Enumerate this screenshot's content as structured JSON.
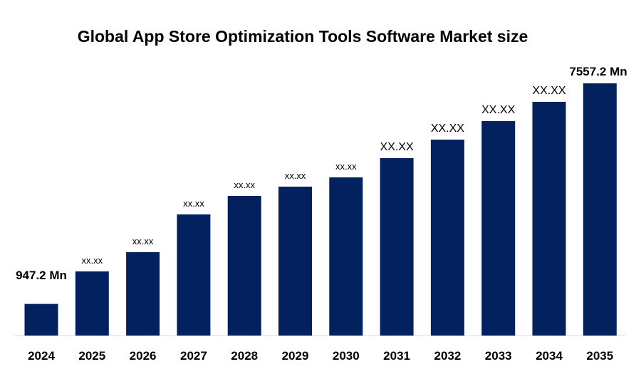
{
  "chart_data": {
    "type": "bar",
    "title": "Global App Store Optimization Tools Software Market size",
    "xlabel": "",
    "ylabel": "",
    "categories": [
      "2024",
      "2025",
      "2026",
      "2027",
      "2028",
      "2029",
      "2030",
      "2031",
      "2032",
      "2033",
      "2034",
      "2035"
    ],
    "values": [
      947.2,
      1921,
      2498,
      3629,
      4184,
      4462,
      4739,
      5316,
      5871,
      6426,
      7003,
      7557.2
    ],
    "data_labels": [
      "947.2 Mn",
      "xx.xx",
      "xx.xx",
      "xx.xx",
      "xx.xx",
      "xx.xx",
      "xx.xx",
      "XX.XX",
      "XX.XX",
      "XX.XX",
      "XX.XX",
      "7557.2 Mn"
    ],
    "ylim": [
      0,
      7557.2
    ],
    "y_axis_visible": false,
    "grid": false,
    "legend": "none",
    "bar_color": "#03215F"
  }
}
